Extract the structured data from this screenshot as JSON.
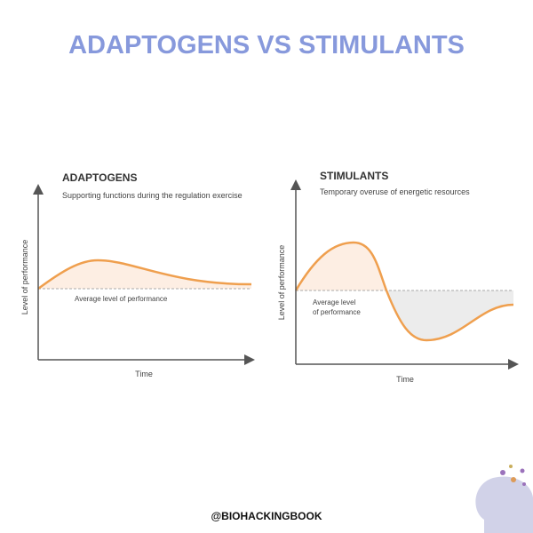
{
  "title": "ADAPTOGENS VS STIMULANTS",
  "panels": [
    {
      "title": "ADAPTOGENS",
      "subtitle": "Supporting functions during the regulation exercise",
      "y_label": "Level of performance",
      "x_label": "Time",
      "annotation": [
        "Average level of performance"
      ]
    },
    {
      "title": "STIMULANTS",
      "subtitle": "Temporary overuse of energetic resources",
      "y_label": "Level of performance",
      "x_label": "Time",
      "annotation": [
        "Average level",
        "of performance"
      ]
    }
  ],
  "footer": "@BIOHACKINGBOOK"
}
